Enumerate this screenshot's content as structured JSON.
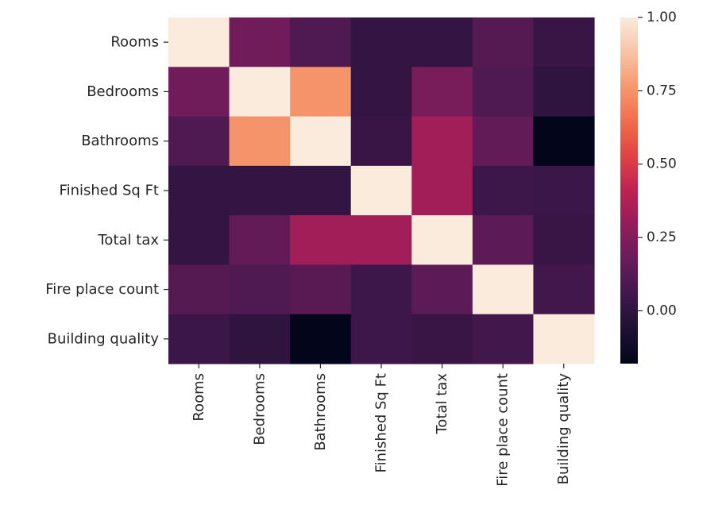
{
  "chart_data": {
    "type": "heatmap",
    "title": "",
    "xlabel": "",
    "ylabel": "",
    "rows": [
      "Rooms",
      "Bedrooms",
      "Bathrooms",
      "Finished Sq Ft",
      "Total tax",
      "Fire place count",
      "Building quality"
    ],
    "columns": [
      "Rooms",
      "Bedrooms",
      "Bathrooms",
      "Finished Sq Ft",
      "Total tax",
      "Fire place count",
      "Building quality"
    ],
    "values": [
      [
        1.0,
        0.2,
        0.1,
        0.01,
        0.01,
        0.12,
        0.03
      ],
      [
        0.2,
        1.0,
        0.75,
        0.01,
        0.22,
        0.1,
        0.0
      ],
      [
        0.1,
        0.75,
        1.0,
        0.03,
        0.33,
        0.16,
        -0.18
      ],
      [
        0.01,
        0.01,
        0.01,
        1.0,
        0.33,
        0.05,
        0.04
      ],
      [
        0.01,
        0.16,
        0.33,
        0.33,
        1.0,
        0.14,
        0.03
      ],
      [
        0.12,
        0.1,
        0.13,
        0.05,
        0.14,
        1.0,
        0.06
      ],
      [
        0.04,
        0.0,
        -0.18,
        0.05,
        0.03,
        0.06,
        1.0
      ]
    ],
    "colorbar": {
      "min": -0.18,
      "max": 1.0,
      "ticks": [
        0.0,
        0.25,
        0.5,
        0.75,
        1.0
      ],
      "tick_labels": [
        "0.00",
        "0.25",
        "0.50",
        "0.75",
        "1.00"
      ],
      "colormap": "rocket"
    },
    "grid": false,
    "legend": "colorbar-right"
  }
}
